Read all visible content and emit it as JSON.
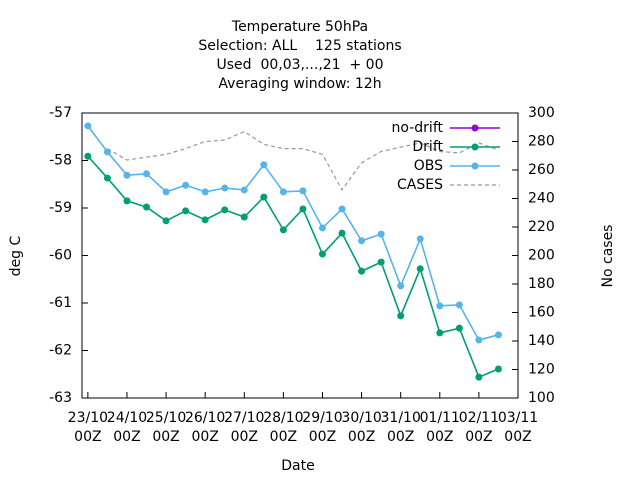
{
  "chart_data": {
    "type": "line",
    "title": "Temperature 50hPa",
    "subtitle": [
      "Selection: ALL    125 stations",
      "Used  00,03,...,21  + 00",
      "Averaging window: 12h"
    ],
    "xlabel": "Date",
    "ylabel": "deg C",
    "y2label": "No cases",
    "x": [
      0,
      0.5,
      1,
      1.5,
      2,
      2.5,
      3,
      3.5,
      4,
      4.5,
      5,
      5.5,
      6,
      6.5,
      7,
      7.5,
      8,
      8.5,
      9,
      9.5,
      10,
      10.5
    ],
    "xlim": [
      -0.15,
      11
    ],
    "xticks": [
      {
        "value": 0,
        "label": "23/10 00Z"
      },
      {
        "value": 1,
        "label": "24/10 00Z"
      },
      {
        "value": 2,
        "label": "25/10 00Z"
      },
      {
        "value": 3,
        "label": "26/10 00Z"
      },
      {
        "value": 4,
        "label": "27/10 00Z"
      },
      {
        "value": 5,
        "label": "28/10 00Z"
      },
      {
        "value": 6,
        "label": "29/10 00Z"
      },
      {
        "value": 7,
        "label": "30/10 00Z"
      },
      {
        "value": 8,
        "label": "31/10 00Z"
      },
      {
        "value": 9,
        "label": "01/11 00Z"
      },
      {
        "value": 10,
        "label": "02/11 00Z"
      },
      {
        "value": 11,
        "label": "03/11 00Z"
      }
    ],
    "ylim": [
      -63,
      -57
    ],
    "yticks": [
      -63,
      -62,
      -61,
      -60,
      -59,
      -58,
      -57
    ],
    "y2lim": [
      100,
      300
    ],
    "y2ticks": [
      100,
      120,
      140,
      160,
      180,
      200,
      220,
      240,
      260,
      280,
      300
    ],
    "legend": "top-right",
    "series": [
      {
        "name": "no-drift",
        "color": "#9400d3",
        "values": [
          null,
          null,
          null,
          null,
          null,
          null,
          null,
          null,
          null,
          null,
          null,
          null,
          null,
          null,
          null,
          null,
          null,
          null,
          null,
          null,
          null,
          null
        ]
      },
      {
        "name": "Drift",
        "color": "#009e73",
        "values": [
          -57.91,
          -58.37,
          -58.85,
          -58.98,
          -59.27,
          -59.06,
          -59.25,
          -59.04,
          -59.19,
          -58.77,
          -59.46,
          -59.02,
          -59.97,
          -59.53,
          -60.33,
          -60.14,
          -61.27,
          -60.28,
          -61.63,
          -61.53,
          -62.56,
          -62.39
        ]
      },
      {
        "name": "OBS",
        "color": "#56b4e9",
        "values": [
          -57.27,
          -57.82,
          -58.31,
          -58.28,
          -58.66,
          -58.52,
          -58.66,
          -58.58,
          -58.62,
          -58.09,
          -58.66,
          -58.64,
          -59.42,
          -59.02,
          -59.69,
          -59.55,
          -60.64,
          -59.65,
          -61.06,
          -61.04,
          -61.78,
          -61.67
        ]
      },
      {
        "name": "CASES",
        "color": "#999999",
        "axis": "y2",
        "dashed": true,
        "values": [
          null,
          275,
          267,
          269,
          271,
          275,
          280,
          281,
          287,
          278,
          275,
          275,
          271,
          246,
          265,
          273,
          276,
          279,
          273,
          272,
          279,
          274
        ]
      }
    ]
  }
}
